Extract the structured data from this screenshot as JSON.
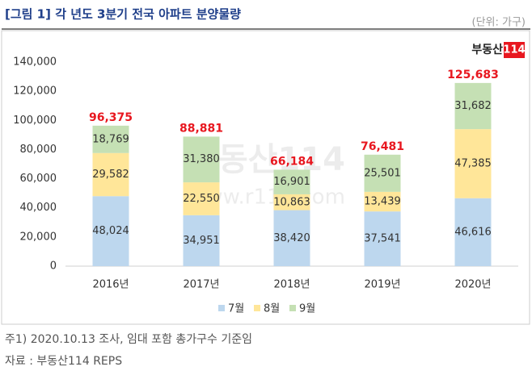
{
  "chart_data": {
    "type": "bar",
    "stacked": true,
    "title": "[그림 1] 각 년도 3분기 전국 아파트 분양물량",
    "unit_label": "(단위: 가구)",
    "logo": {
      "name": "부동산",
      "number": "114"
    },
    "watermark": {
      "name": "부동산114",
      "url": "www.r114.com"
    },
    "categories": [
      "2016년",
      "2017년",
      "2018년",
      "2019년",
      "2020년"
    ],
    "series": [
      {
        "name": "7월",
        "color": "#bdd7ee",
        "values": [
          48024,
          34951,
          38420,
          37541,
          46616
        ],
        "value_labels": [
          "48,024",
          "34,951",
          "38,420",
          "37,541",
          "46,616"
        ]
      },
      {
        "name": "8월",
        "color": "#ffe699",
        "values": [
          29582,
          22550,
          10863,
          13439,
          47385
        ],
        "value_labels": [
          "29,582",
          "22,550",
          "10,863",
          "13,439",
          "47,385"
        ]
      },
      {
        "name": "9월",
        "color": "#c5e0b4",
        "values": [
          18769,
          31380,
          16901,
          25501,
          31682
        ],
        "value_labels": [
          "18,769",
          "31,380",
          "16,901",
          "25,501",
          "31,682"
        ]
      }
    ],
    "totals": [
      96375,
      88881,
      66184,
      76481,
      125683
    ],
    "total_labels": [
      "96,375",
      "88,881",
      "66,184",
      "76,481",
      "125,683"
    ],
    "total_color": "#e8171f",
    "ylim": [
      0,
      140000
    ],
    "yticks": [
      0,
      {
        "value": 20000,
        "label": "20,000"
      },
      {
        "value": 40000,
        "label": "40,000"
      },
      {
        "value": 60000,
        "label": "60,000"
      },
      {
        "value": 80000,
        "label": "80,000"
      },
      {
        "value": 100000,
        "label": "100,000"
      },
      {
        "value": 120000,
        "label": "120,000"
      },
      {
        "value": 140000,
        "label": "140,000"
      }
    ],
    "grid": false,
    "legend": "bottom",
    "notes": [
      "주1) 2020.10.13 조사, 임대 포함 총가구수 기준임",
      "자료 : 부동산114 REPS"
    ]
  }
}
